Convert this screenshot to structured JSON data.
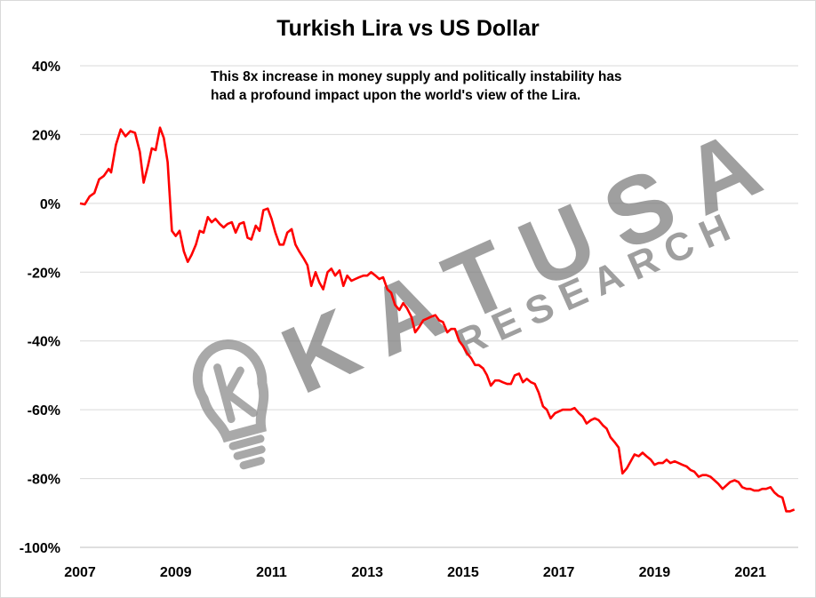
{
  "chart_data": {
    "type": "line",
    "title": "Turkish Lira vs US Dollar",
    "annotation": [
      "This 8x increase in money supply and politically instability has",
      "had a profound impact upon the world's view of the Lira."
    ],
    "xlabel": "",
    "ylabel": "",
    "x_ticks": [
      "2007",
      "2009",
      "2011",
      "2013",
      "2015",
      "2017",
      "2019",
      "2021"
    ],
    "y_ticks": [
      "40%",
      "20%",
      "0%",
      "-20%",
      "-40%",
      "-60%",
      "-80%",
      "-100%"
    ],
    "xlim": [
      2007,
      2022
    ],
    "ylim": [
      -100,
      40
    ],
    "grid": true,
    "series": [
      {
        "color": "#ff0000",
        "points": [
          [
            2007.0,
            0
          ],
          [
            2007.1,
            -0.3
          ],
          [
            2007.2,
            2
          ],
          [
            2007.3,
            3
          ],
          [
            2007.4,
            7
          ],
          [
            2007.5,
            8
          ],
          [
            2007.6,
            10
          ],
          [
            2007.65,
            9
          ],
          [
            2007.75,
            17
          ],
          [
            2007.85,
            21.5
          ],
          [
            2007.95,
            19.5
          ],
          [
            2008.05,
            21
          ],
          [
            2008.15,
            20.5
          ],
          [
            2008.25,
            15
          ],
          [
            2008.33,
            6
          ],
          [
            2008.42,
            11
          ],
          [
            2008.5,
            16
          ],
          [
            2008.58,
            15.5
          ],
          [
            2008.67,
            22
          ],
          [
            2008.75,
            19
          ],
          [
            2008.83,
            12
          ],
          [
            2008.92,
            -8
          ],
          [
            2009.0,
            -9.5
          ],
          [
            2009.08,
            -8
          ],
          [
            2009.17,
            -14
          ],
          [
            2009.25,
            -17
          ],
          [
            2009.33,
            -15
          ],
          [
            2009.42,
            -12
          ],
          [
            2009.5,
            -8
          ],
          [
            2009.58,
            -8.5
          ],
          [
            2009.67,
            -4
          ],
          [
            2009.75,
            -5.5
          ],
          [
            2009.83,
            -4.5
          ],
          [
            2009.92,
            -6
          ],
          [
            2010.0,
            -7
          ],
          [
            2010.08,
            -6
          ],
          [
            2010.17,
            -5.5
          ],
          [
            2010.25,
            -8.5
          ],
          [
            2010.33,
            -6
          ],
          [
            2010.42,
            -5.5
          ],
          [
            2010.5,
            -10
          ],
          [
            2010.58,
            -10.5
          ],
          [
            2010.67,
            -6.5
          ],
          [
            2010.75,
            -8
          ],
          [
            2010.83,
            -2
          ],
          [
            2010.92,
            -1.5
          ],
          [
            2011.0,
            -4.5
          ],
          [
            2011.08,
            -8.5
          ],
          [
            2011.17,
            -12
          ],
          [
            2011.25,
            -12
          ],
          [
            2011.33,
            -8.5
          ],
          [
            2011.42,
            -7.5
          ],
          [
            2011.5,
            -12
          ],
          [
            2011.58,
            -14
          ],
          [
            2011.67,
            -16
          ],
          [
            2011.75,
            -18
          ],
          [
            2011.83,
            -24
          ],
          [
            2011.92,
            -20
          ],
          [
            2012.0,
            -23
          ],
          [
            2012.08,
            -25
          ],
          [
            2012.17,
            -20
          ],
          [
            2012.25,
            -19
          ],
          [
            2012.33,
            -21
          ],
          [
            2012.42,
            -19.5
          ],
          [
            2012.5,
            -24
          ],
          [
            2012.58,
            -21
          ],
          [
            2012.67,
            -22.5
          ],
          [
            2012.75,
            -22
          ],
          [
            2012.83,
            -21.5
          ],
          [
            2012.92,
            -21
          ],
          [
            2013.0,
            -21
          ],
          [
            2013.08,
            -20
          ],
          [
            2013.17,
            -21
          ],
          [
            2013.25,
            -22
          ],
          [
            2013.33,
            -21.5
          ],
          [
            2013.42,
            -25
          ],
          [
            2013.5,
            -26
          ],
          [
            2013.58,
            -29.5
          ],
          [
            2013.67,
            -31
          ],
          [
            2013.75,
            -29
          ],
          [
            2013.83,
            -30.5
          ],
          [
            2013.92,
            -33
          ],
          [
            2014.0,
            -37.5
          ],
          [
            2014.08,
            -36
          ],
          [
            2014.17,
            -34
          ],
          [
            2014.25,
            -33.5
          ],
          [
            2014.33,
            -33
          ],
          [
            2014.42,
            -32.5
          ],
          [
            2014.5,
            -34
          ],
          [
            2014.58,
            -34.5
          ],
          [
            2014.67,
            -37.5
          ],
          [
            2014.75,
            -36.5
          ],
          [
            2014.83,
            -36.5
          ],
          [
            2014.92,
            -40
          ],
          [
            2015.0,
            -41.5
          ],
          [
            2015.08,
            -43.5
          ],
          [
            2015.17,
            -45
          ],
          [
            2015.25,
            -47
          ],
          [
            2015.33,
            -47
          ],
          [
            2015.42,
            -48
          ],
          [
            2015.5,
            -50
          ],
          [
            2015.58,
            -53
          ],
          [
            2015.67,
            -51.5
          ],
          [
            2015.75,
            -51.5
          ],
          [
            2015.83,
            -52
          ],
          [
            2015.92,
            -52.5
          ],
          [
            2016.0,
            -52.5
          ],
          [
            2016.08,
            -50
          ],
          [
            2016.17,
            -49.5
          ],
          [
            2016.25,
            -52
          ],
          [
            2016.33,
            -51
          ],
          [
            2016.42,
            -52
          ],
          [
            2016.5,
            -52.5
          ],
          [
            2016.58,
            -55
          ],
          [
            2016.67,
            -59
          ],
          [
            2016.75,
            -60
          ],
          [
            2016.83,
            -62.5
          ],
          [
            2016.92,
            -61
          ],
          [
            2017.0,
            -60.5
          ],
          [
            2017.08,
            -60
          ],
          [
            2017.17,
            -60
          ],
          [
            2017.25,
            -60
          ],
          [
            2017.33,
            -59.5
          ],
          [
            2017.42,
            -61
          ],
          [
            2017.5,
            -62
          ],
          [
            2017.58,
            -64
          ],
          [
            2017.67,
            -63
          ],
          [
            2017.75,
            -62.5
          ],
          [
            2017.83,
            -63
          ],
          [
            2017.92,
            -64.5
          ],
          [
            2018.0,
            -65.5
          ],
          [
            2018.08,
            -68
          ],
          [
            2018.17,
            -69.5
          ],
          [
            2018.25,
            -71
          ],
          [
            2018.33,
            -78.5
          ],
          [
            2018.42,
            -77
          ],
          [
            2018.5,
            -75
          ],
          [
            2018.58,
            -73
          ],
          [
            2018.67,
            -73.5
          ],
          [
            2018.75,
            -72.5
          ],
          [
            2018.83,
            -73.5
          ],
          [
            2018.92,
            -74.5
          ],
          [
            2019.0,
            -76
          ],
          [
            2019.08,
            -75.5
          ],
          [
            2019.17,
            -75.5
          ],
          [
            2019.25,
            -74.5
          ],
          [
            2019.33,
            -75.5
          ],
          [
            2019.42,
            -75
          ],
          [
            2019.5,
            -75.5
          ],
          [
            2019.58,
            -76
          ],
          [
            2019.67,
            -76.5
          ],
          [
            2019.75,
            -77.5
          ],
          [
            2019.83,
            -78
          ],
          [
            2019.92,
            -79.5
          ],
          [
            2020.0,
            -79
          ],
          [
            2020.08,
            -79
          ],
          [
            2020.17,
            -79.5
          ],
          [
            2020.25,
            -80.5
          ],
          [
            2020.33,
            -81.5
          ],
          [
            2020.42,
            -83
          ],
          [
            2020.5,
            -82
          ],
          [
            2020.58,
            -81
          ],
          [
            2020.67,
            -80.5
          ],
          [
            2020.75,
            -81
          ],
          [
            2020.83,
            -82.5
          ],
          [
            2020.92,
            -83
          ],
          [
            2021.0,
            -83
          ],
          [
            2021.08,
            -83.5
          ],
          [
            2021.17,
            -83.5
          ],
          [
            2021.25,
            -83
          ],
          [
            2021.33,
            -83
          ],
          [
            2021.42,
            -82.5
          ],
          [
            2021.5,
            -84
          ],
          [
            2021.58,
            -85
          ],
          [
            2021.67,
            -85.5
          ],
          [
            2021.75,
            -89.5
          ],
          [
            2021.83,
            -89.5
          ],
          [
            2021.92,
            -89
          ]
        ]
      }
    ]
  },
  "watermark": {
    "brand_text": "KATUSA",
    "sub_text": "RESEARCH",
    "icon": "lightbulb-k-icon",
    "color": "#7f7f7f"
  }
}
